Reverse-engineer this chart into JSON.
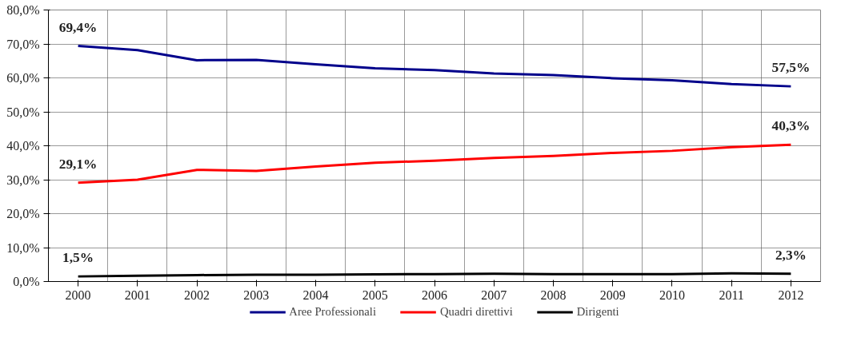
{
  "chart_data": {
    "type": "line",
    "categories": [
      "2000",
      "2001",
      "2002",
      "2003",
      "2004",
      "2005",
      "2006",
      "2007",
      "2008",
      "2009",
      "2010",
      "2011",
      "2012"
    ],
    "series": [
      {
        "name": "Aree Professionali",
        "color": "#00008b",
        "values": [
          69.4,
          68.2,
          65.2,
          65.3,
          64.0,
          62.8,
          62.3,
          61.3,
          60.8,
          59.9,
          59.3,
          58.2,
          57.5
        ],
        "value_labels": [
          "69,4%",
          null,
          null,
          null,
          null,
          null,
          null,
          null,
          null,
          null,
          null,
          null,
          "57,5%"
        ]
      },
      {
        "name": "Quadri direttivi",
        "color": "#ff0000",
        "values": [
          29.1,
          30.0,
          32.9,
          32.6,
          33.9,
          35.0,
          35.6,
          36.4,
          37.0,
          37.9,
          38.5,
          39.6,
          40.3
        ],
        "value_labels": [
          "29,1%",
          null,
          null,
          null,
          null,
          null,
          null,
          null,
          null,
          null,
          null,
          null,
          "40,3%"
        ]
      },
      {
        "name": "Dirigenti",
        "color": "#000000",
        "values": [
          1.5,
          1.7,
          1.9,
          2.0,
          2.0,
          2.1,
          2.2,
          2.3,
          2.2,
          2.2,
          2.2,
          2.4,
          2.3
        ],
        "value_labels": [
          "1,5%",
          null,
          null,
          null,
          null,
          null,
          null,
          null,
          null,
          null,
          null,
          null,
          "2,3%"
        ]
      }
    ],
    "ylim": [
      0,
      80
    ],
    "yticks": [
      {
        "value": 0,
        "label": "0,0%"
      },
      {
        "value": 10,
        "label": "10,0%"
      },
      {
        "value": 20,
        "label": "20,0%"
      },
      {
        "value": 30,
        "label": "30,0%"
      },
      {
        "value": 40,
        "label": "40,0%"
      },
      {
        "value": 50,
        "label": "50,0%"
      },
      {
        "value": 60,
        "label": "60,0%"
      },
      {
        "value": 70,
        "label": "70,0%"
      },
      {
        "value": 80,
        "label": "80,0%"
      }
    ],
    "grid": true,
    "legend": "bottom",
    "marker": "none",
    "line_style": "solid"
  }
}
